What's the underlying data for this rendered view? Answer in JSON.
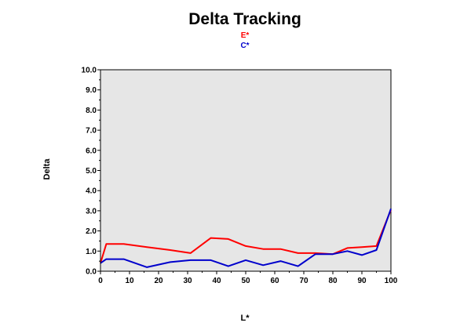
{
  "chart_data": {
    "type": "line",
    "title": "Delta Tracking",
    "xlabel": "L*",
    "ylabel": "Delta",
    "xlim": [
      0,
      100
    ],
    "ylim": [
      0,
      10
    ],
    "xticks": [
      "0",
      "10",
      "20",
      "30",
      "40",
      "50",
      "60",
      "70",
      "80",
      "90",
      "100"
    ],
    "yticks": [
      "0.0",
      "1.0",
      "2.0",
      "3.0",
      "4.0",
      "5.0",
      "6.0",
      "7.0",
      "8.0",
      "9.0",
      "10.0"
    ],
    "grid": false,
    "legend_position": "top-center",
    "plot_background": "#e6e6e6",
    "series": [
      {
        "name": "E*",
        "color": "#ff0000",
        "x": [
          0,
          2,
          8,
          16,
          24,
          31,
          38,
          44,
          50,
          56,
          62,
          68,
          74,
          80,
          85,
          90,
          95,
          100
        ],
        "y": [
          0.4,
          1.35,
          1.35,
          1.2,
          1.05,
          0.9,
          1.65,
          1.6,
          1.25,
          1.1,
          1.1,
          0.9,
          0.9,
          0.85,
          1.15,
          1.2,
          1.25,
          3.05
        ]
      },
      {
        "name": "C*",
        "color": "#0000cc",
        "x": [
          0,
          2,
          8,
          16,
          24,
          31,
          38,
          44,
          50,
          56,
          62,
          68,
          74,
          80,
          85,
          90,
          95,
          100
        ],
        "y": [
          0.4,
          0.6,
          0.6,
          0.2,
          0.45,
          0.55,
          0.55,
          0.25,
          0.55,
          0.3,
          0.5,
          0.25,
          0.85,
          0.85,
          1.0,
          0.8,
          1.05,
          3.1
        ]
      }
    ]
  }
}
